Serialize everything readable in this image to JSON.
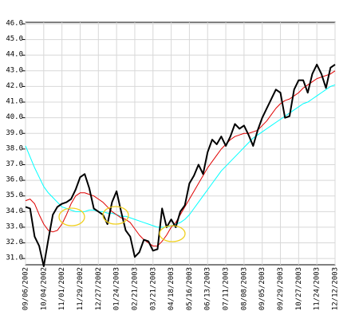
{
  "chart_data": {
    "type": "line",
    "categories": [
      "09/06/2002",
      null,
      null,
      null,
      "10/04/2002",
      null,
      null,
      null,
      "11/01/2002",
      null,
      null,
      null,
      "11/29/2002",
      null,
      null,
      null,
      "12/27/2002",
      null,
      null,
      null,
      "01/24/2003",
      null,
      null,
      null,
      "02/21/2003",
      null,
      null,
      null,
      "03/21/2003",
      null,
      null,
      null,
      "04/18/2003",
      null,
      null,
      null,
      "05/16/2003",
      null,
      null,
      null,
      "06/13/2003",
      null,
      null,
      null,
      "07/11/2003",
      null,
      null,
      null,
      "08/08/2003",
      null,
      null,
      null,
      "09/05/2003",
      null,
      null,
      null,
      "09/29/2003",
      null,
      null,
      null,
      "10/27/2003",
      null,
      null,
      null,
      "11/24/2003",
      null,
      null,
      null,
      "12/12/2003"
    ],
    "series": [
      {
        "color": "#00ffff",
        "values": [
          38.2,
          37.5,
          36.8,
          36.2,
          35.6,
          35.2,
          34.9,
          34.6,
          34.3,
          34.2,
          34.1,
          34.0,
          34.0,
          34.0,
          34.1,
          34.1,
          34.0,
          34.0,
          33.9,
          33.9,
          33.8,
          33.7,
          33.7,
          33.6,
          33.5,
          33.4,
          33.3,
          33.2,
          33.1,
          33.0,
          33.0,
          33.0,
          33.1,
          33.2,
          33.3,
          33.5,
          33.8,
          34.2,
          34.6,
          35.0,
          35.4,
          35.8,
          36.2,
          36.6,
          36.9,
          37.2,
          37.5,
          37.8,
          38.1,
          38.4,
          38.7,
          38.9,
          39.1,
          39.3,
          39.5,
          39.7,
          39.9,
          40.1,
          40.3,
          40.5,
          40.7,
          40.9,
          41.0,
          41.2,
          41.4,
          41.6,
          41.8,
          42.0,
          42.1
        ]
      },
      {
        "color": "#e00000",
        "values": [
          34.7,
          34.8,
          34.5,
          33.8,
          33.2,
          32.8,
          32.7,
          32.8,
          33.2,
          33.8,
          34.5,
          35.0,
          35.2,
          35.2,
          35.1,
          35.0,
          34.8,
          34.6,
          34.3,
          34.0,
          33.8,
          33.6,
          33.5,
          33.3,
          32.9,
          32.5,
          32.2,
          32.0,
          31.8,
          31.8,
          32.1,
          32.5,
          33.0,
          33.3,
          33.8,
          34.3,
          34.8,
          35.3,
          35.8,
          36.3,
          36.8,
          37.2,
          37.6,
          38.0,
          38.3,
          38.6,
          38.8,
          38.9,
          39.0,
          39.0,
          39.1,
          39.2,
          39.5,
          39.8,
          40.2,
          40.6,
          40.9,
          41.1,
          41.2,
          41.4,
          41.6,
          41.9,
          42.1,
          42.3,
          42.5,
          42.6,
          42.7,
          42.8,
          43.0
        ]
      },
      {
        "color": "#000000",
        "values": [
          34.3,
          34.2,
          32.4,
          31.8,
          30.5,
          32.2,
          33.8,
          34.3,
          34.5,
          34.6,
          34.8,
          35.4,
          36.2,
          36.4,
          35.5,
          34.2,
          34.0,
          33.8,
          33.2,
          34.6,
          35.3,
          34.0,
          32.8,
          32.4,
          31.1,
          31.4,
          32.2,
          32.1,
          31.5,
          31.6,
          34.2,
          33.0,
          33.5,
          33.0,
          34.0,
          34.4,
          35.8,
          36.3,
          37.0,
          36.4,
          37.8,
          38.6,
          38.3,
          38.8,
          38.2,
          38.8,
          39.6,
          39.3,
          39.5,
          38.9,
          38.2,
          39.2,
          40.0,
          40.6,
          41.2,
          41.8,
          41.6,
          40.0,
          40.1,
          41.8,
          42.4,
          42.4,
          41.6,
          42.8,
          43.4,
          42.8,
          41.9,
          43.2,
          43.4
        ]
      }
    ],
    "ylim": [
      30.6,
      46.1
    ],
    "yticks": [
      {
        "value": 31,
        "label": "31.0"
      },
      {
        "value": 32,
        "label": "32.0"
      },
      {
        "value": 33,
        "label": "33.0"
      },
      {
        "value": 34,
        "label": "34.0"
      },
      {
        "value": 35,
        "label": "35.0"
      },
      {
        "value": 36,
        "label": "36.0"
      },
      {
        "value": 37,
        "label": "37.0"
      },
      {
        "value": 38,
        "label": "38.0"
      },
      {
        "value": 39,
        "label": "39.0"
      },
      {
        "value": 40,
        "label": "40.0"
      },
      {
        "value": 41,
        "label": "41.0"
      },
      {
        "value": 42,
        "label": "42.0"
      },
      {
        "value": 43,
        "label": "43.0"
      },
      {
        "value": 44,
        "label": "44.0"
      },
      {
        "value": 45,
        "label": "45.0"
      },
      {
        "value": 46,
        "label": "46.0"
      }
    ],
    "grid": true
  }
}
